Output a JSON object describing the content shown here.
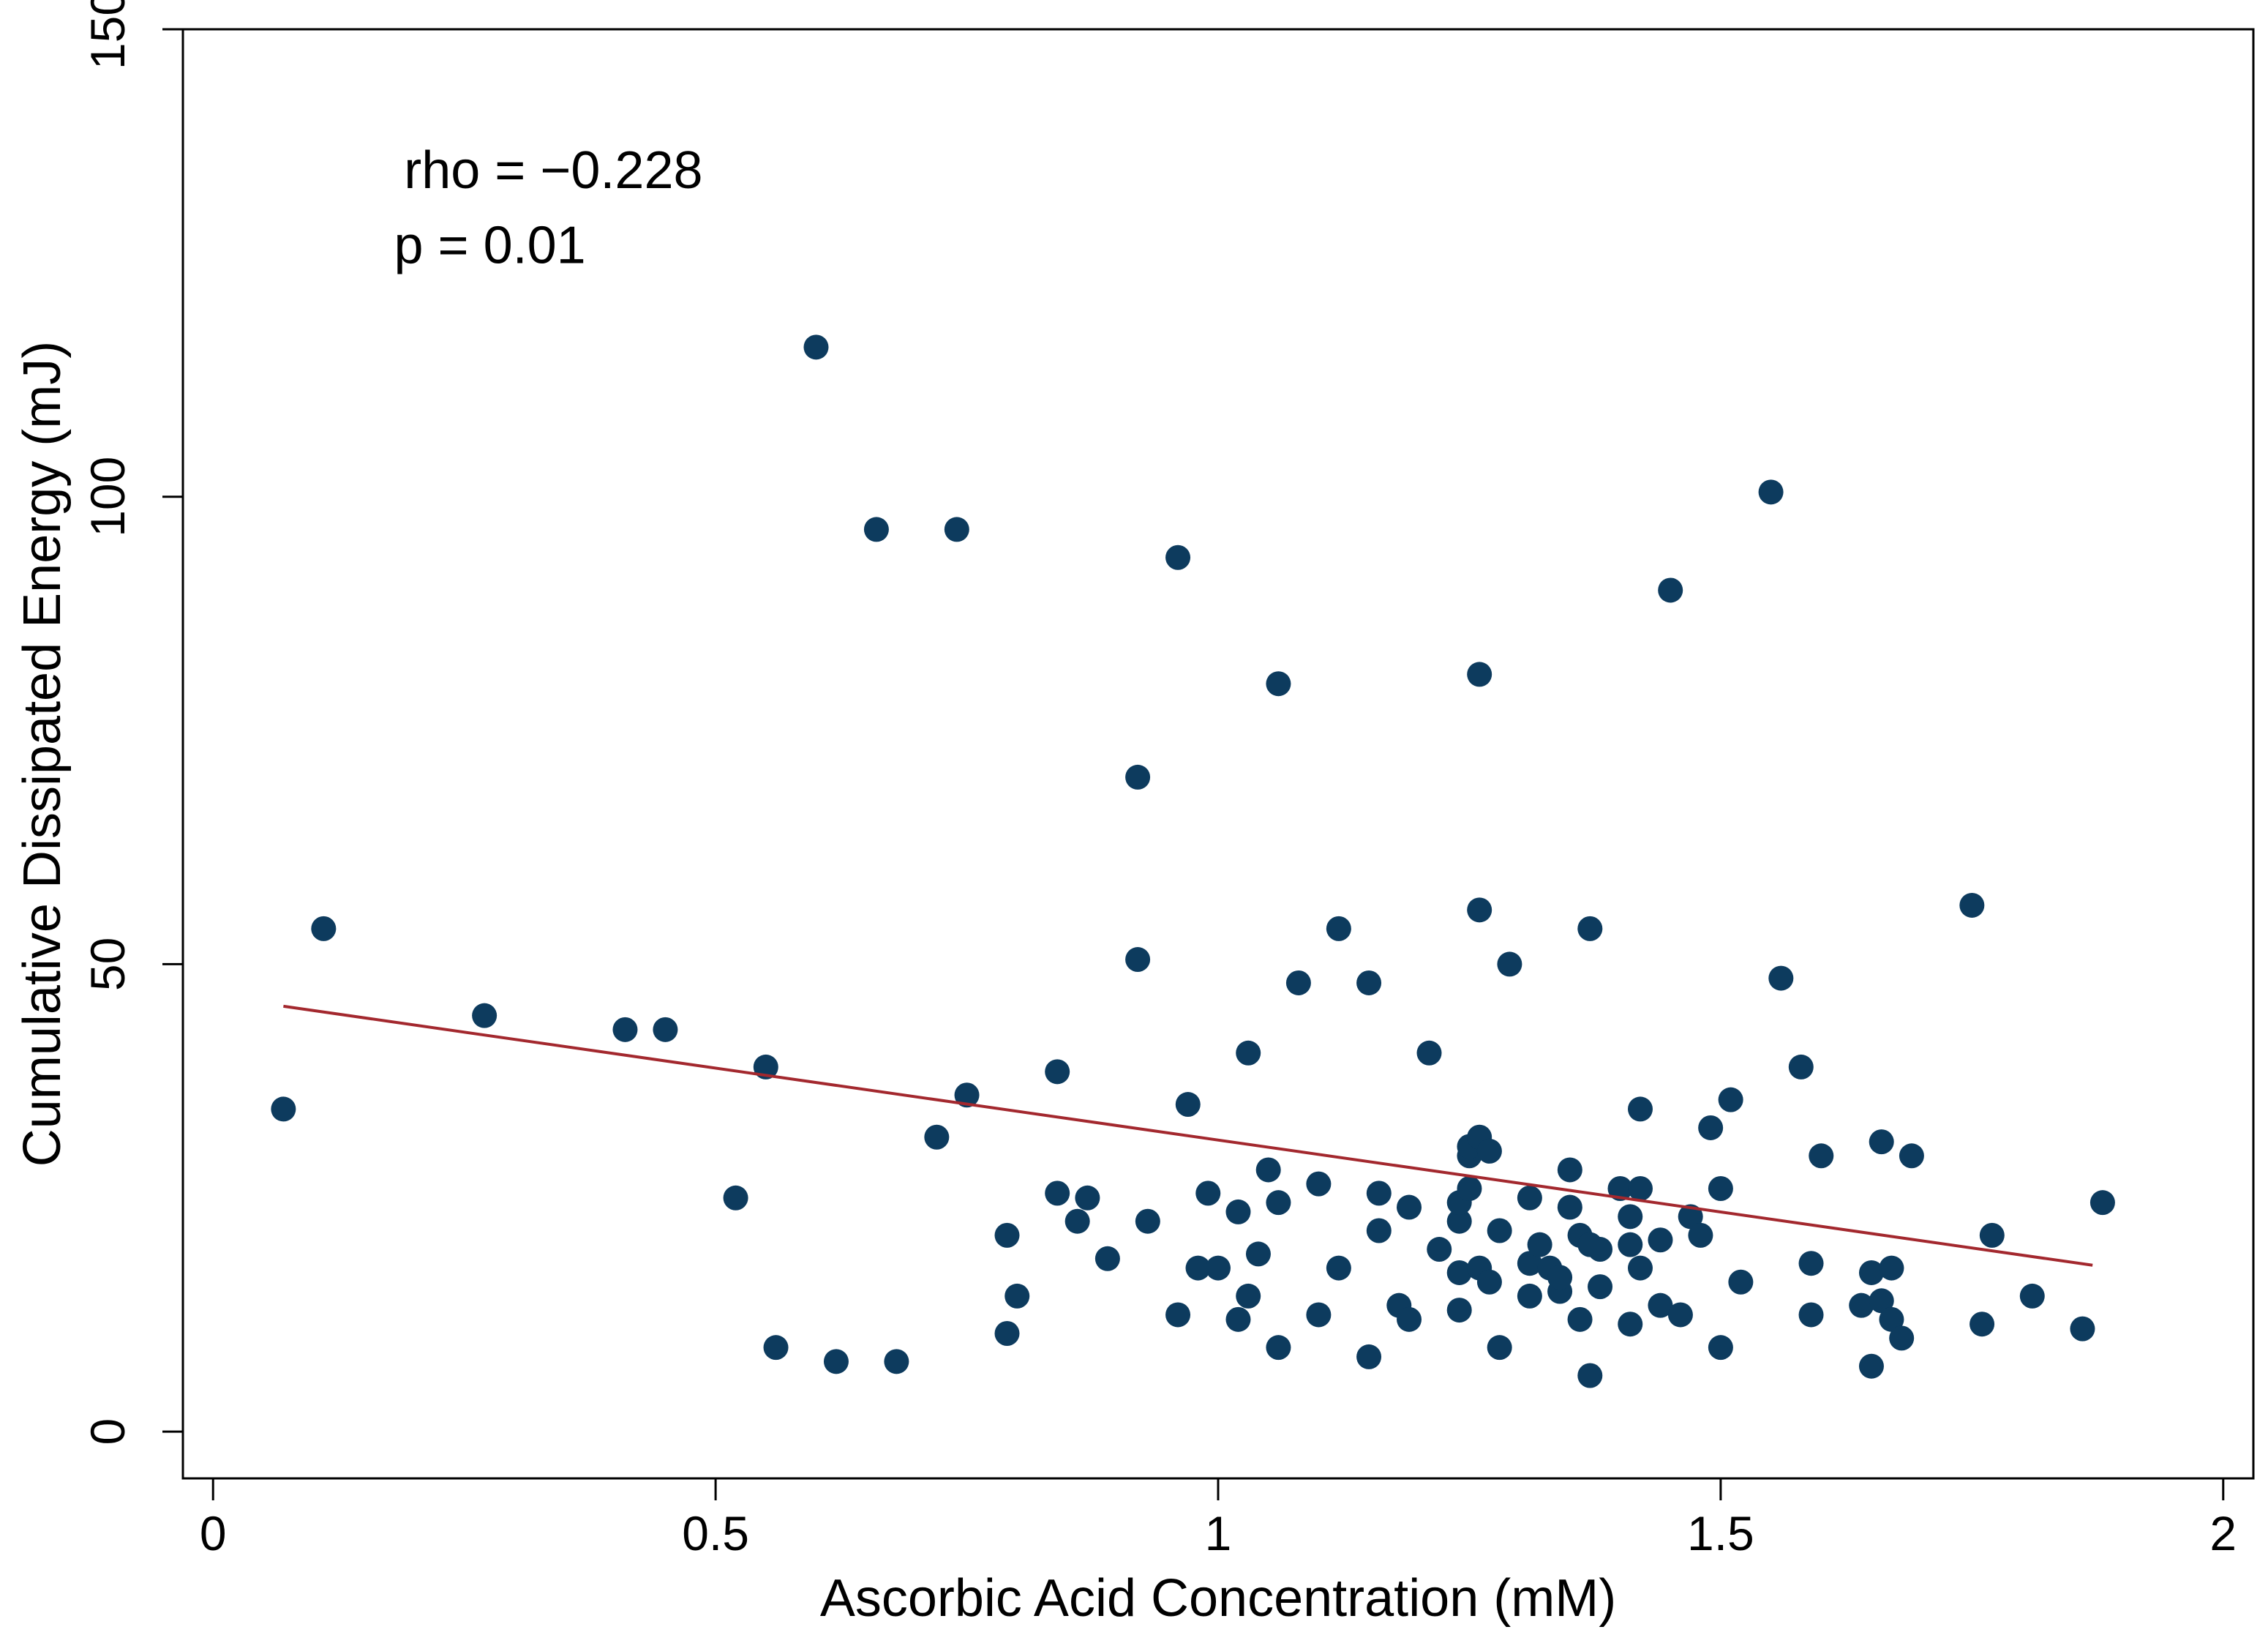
{
  "chart_data": {
    "type": "scatter",
    "title": "",
    "xlabel": "Ascorbic Acid Concentration (mM)",
    "ylabel": "Cumulative Dissipated Energy (mJ)",
    "xlim": [
      -0.03,
      2.03
    ],
    "ylim": [
      -5,
      150
    ],
    "x_ticks": [
      0,
      0.5,
      1,
      1.5,
      2
    ],
    "x_tick_labels": [
      "0",
      "0.5",
      "1",
      "1.5",
      "2"
    ],
    "y_ticks": [
      0,
      50,
      100,
      150
    ],
    "y_tick_labels": [
      "0",
      "50",
      "100",
      "150"
    ],
    "grid": false,
    "annotations": [
      {
        "text": "rho = −0.228",
        "x": 0.19,
        "y": 133
      },
      {
        "text": "p = 0.01",
        "x": 0.18,
        "y": 125
      }
    ],
    "colors": {
      "points": "#0d3b5e",
      "fit_line": "#a3282e"
    },
    "fit_line": {
      "x": [
        0.07,
        1.87
      ],
      "y": [
        45.5,
        17.8
      ]
    },
    "series": [
      {
        "name": "samples",
        "points": [
          [
            0.07,
            34.5
          ],
          [
            0.11,
            53.8
          ],
          [
            0.27,
            44.5
          ],
          [
            0.41,
            43
          ],
          [
            0.45,
            43
          ],
          [
            0.52,
            25
          ],
          [
            0.55,
            39
          ],
          [
            0.56,
            9
          ],
          [
            0.6,
            116
          ],
          [
            0.62,
            7.5
          ],
          [
            0.66,
            96.5
          ],
          [
            0.68,
            7.5
          ],
          [
            0.72,
            31.5
          ],
          [
            0.74,
            96.5
          ],
          [
            0.75,
            36
          ],
          [
            0.79,
            10.5
          ],
          [
            0.79,
            21
          ],
          [
            0.8,
            14.5
          ],
          [
            0.84,
            38.5
          ],
          [
            0.84,
            25.5
          ],
          [
            0.86,
            22.5
          ],
          [
            0.87,
            25
          ],
          [
            0.89,
            18.5
          ],
          [
            0.92,
            70
          ],
          [
            0.92,
            50.5
          ],
          [
            0.93,
            22.5
          ],
          [
            0.96,
            93.5
          ],
          [
            0.96,
            12.5
          ],
          [
            0.97,
            35
          ],
          [
            0.98,
            17.5
          ],
          [
            0.99,
            25.5
          ],
          [
            1.0,
            17.5
          ],
          [
            1.02,
            23.5
          ],
          [
            1.02,
            12
          ],
          [
            1.03,
            14.5
          ],
          [
            1.03,
            40.5
          ],
          [
            1.04,
            19
          ],
          [
            1.05,
            28
          ],
          [
            1.06,
            24.5
          ],
          [
            1.06,
            80
          ],
          [
            1.06,
            9
          ],
          [
            1.08,
            48
          ],
          [
            1.1,
            26.5
          ],
          [
            1.1,
            12.5
          ],
          [
            1.12,
            53.8
          ],
          [
            1.12,
            17.5
          ],
          [
            1.15,
            48
          ],
          [
            1.15,
            8
          ],
          [
            1.16,
            21.5
          ],
          [
            1.16,
            25.5
          ],
          [
            1.18,
            13.5
          ],
          [
            1.19,
            24
          ],
          [
            1.19,
            12
          ],
          [
            1.21,
            40.5
          ],
          [
            1.22,
            19.5
          ],
          [
            1.24,
            22.5
          ],
          [
            1.24,
            24.5
          ],
          [
            1.24,
            17
          ],
          [
            1.24,
            13
          ],
          [
            1.25,
            29.5
          ],
          [
            1.25,
            30.5
          ],
          [
            1.25,
            26
          ],
          [
            1.26,
            17.5
          ],
          [
            1.26,
            31.5
          ],
          [
            1.26,
            55.8
          ],
          [
            1.26,
            81
          ],
          [
            1.27,
            16
          ],
          [
            1.27,
            30
          ],
          [
            1.28,
            9
          ],
          [
            1.28,
            21.5
          ],
          [
            1.29,
            50
          ],
          [
            1.31,
            25
          ],
          [
            1.31,
            14.5
          ],
          [
            1.31,
            18
          ],
          [
            1.32,
            20
          ],
          [
            1.33,
            17.5
          ],
          [
            1.34,
            15
          ],
          [
            1.34,
            16.5
          ],
          [
            1.35,
            28
          ],
          [
            1.35,
            24
          ],
          [
            1.36,
            21
          ],
          [
            1.36,
            12
          ],
          [
            1.37,
            20
          ],
          [
            1.37,
            6
          ],
          [
            1.37,
            53.8
          ],
          [
            1.38,
            19.5
          ],
          [
            1.38,
            15.5
          ],
          [
            1.4,
            26
          ],
          [
            1.41,
            20
          ],
          [
            1.41,
            11.5
          ],
          [
            1.41,
            23
          ],
          [
            1.42,
            17.5
          ],
          [
            1.42,
            26
          ],
          [
            1.42,
            34.5
          ],
          [
            1.44,
            20.5
          ],
          [
            1.44,
            13.5
          ],
          [
            1.45,
            90
          ],
          [
            1.46,
            12.5
          ],
          [
            1.47,
            23
          ],
          [
            1.48,
            21
          ],
          [
            1.49,
            32.5
          ],
          [
            1.5,
            9
          ],
          [
            1.5,
            26
          ],
          [
            1.51,
            35.5
          ],
          [
            1.52,
            16
          ],
          [
            1.55,
            100.5
          ],
          [
            1.56,
            48.5
          ],
          [
            1.58,
            39
          ],
          [
            1.59,
            18
          ],
          [
            1.59,
            12.5
          ],
          [
            1.6,
            29.5
          ],
          [
            1.64,
            13.5
          ],
          [
            1.65,
            7
          ],
          [
            1.65,
            17
          ],
          [
            1.66,
            31
          ],
          [
            1.66,
            14
          ],
          [
            1.67,
            17.5
          ],
          [
            1.67,
            12
          ],
          [
            1.68,
            10
          ],
          [
            1.69,
            29.5
          ],
          [
            1.75,
            56.3
          ],
          [
            1.76,
            11.5
          ],
          [
            1.77,
            21
          ],
          [
            1.81,
            14.5
          ],
          [
            1.86,
            11
          ],
          [
            1.88,
            24.5
          ]
        ]
      }
    ]
  }
}
